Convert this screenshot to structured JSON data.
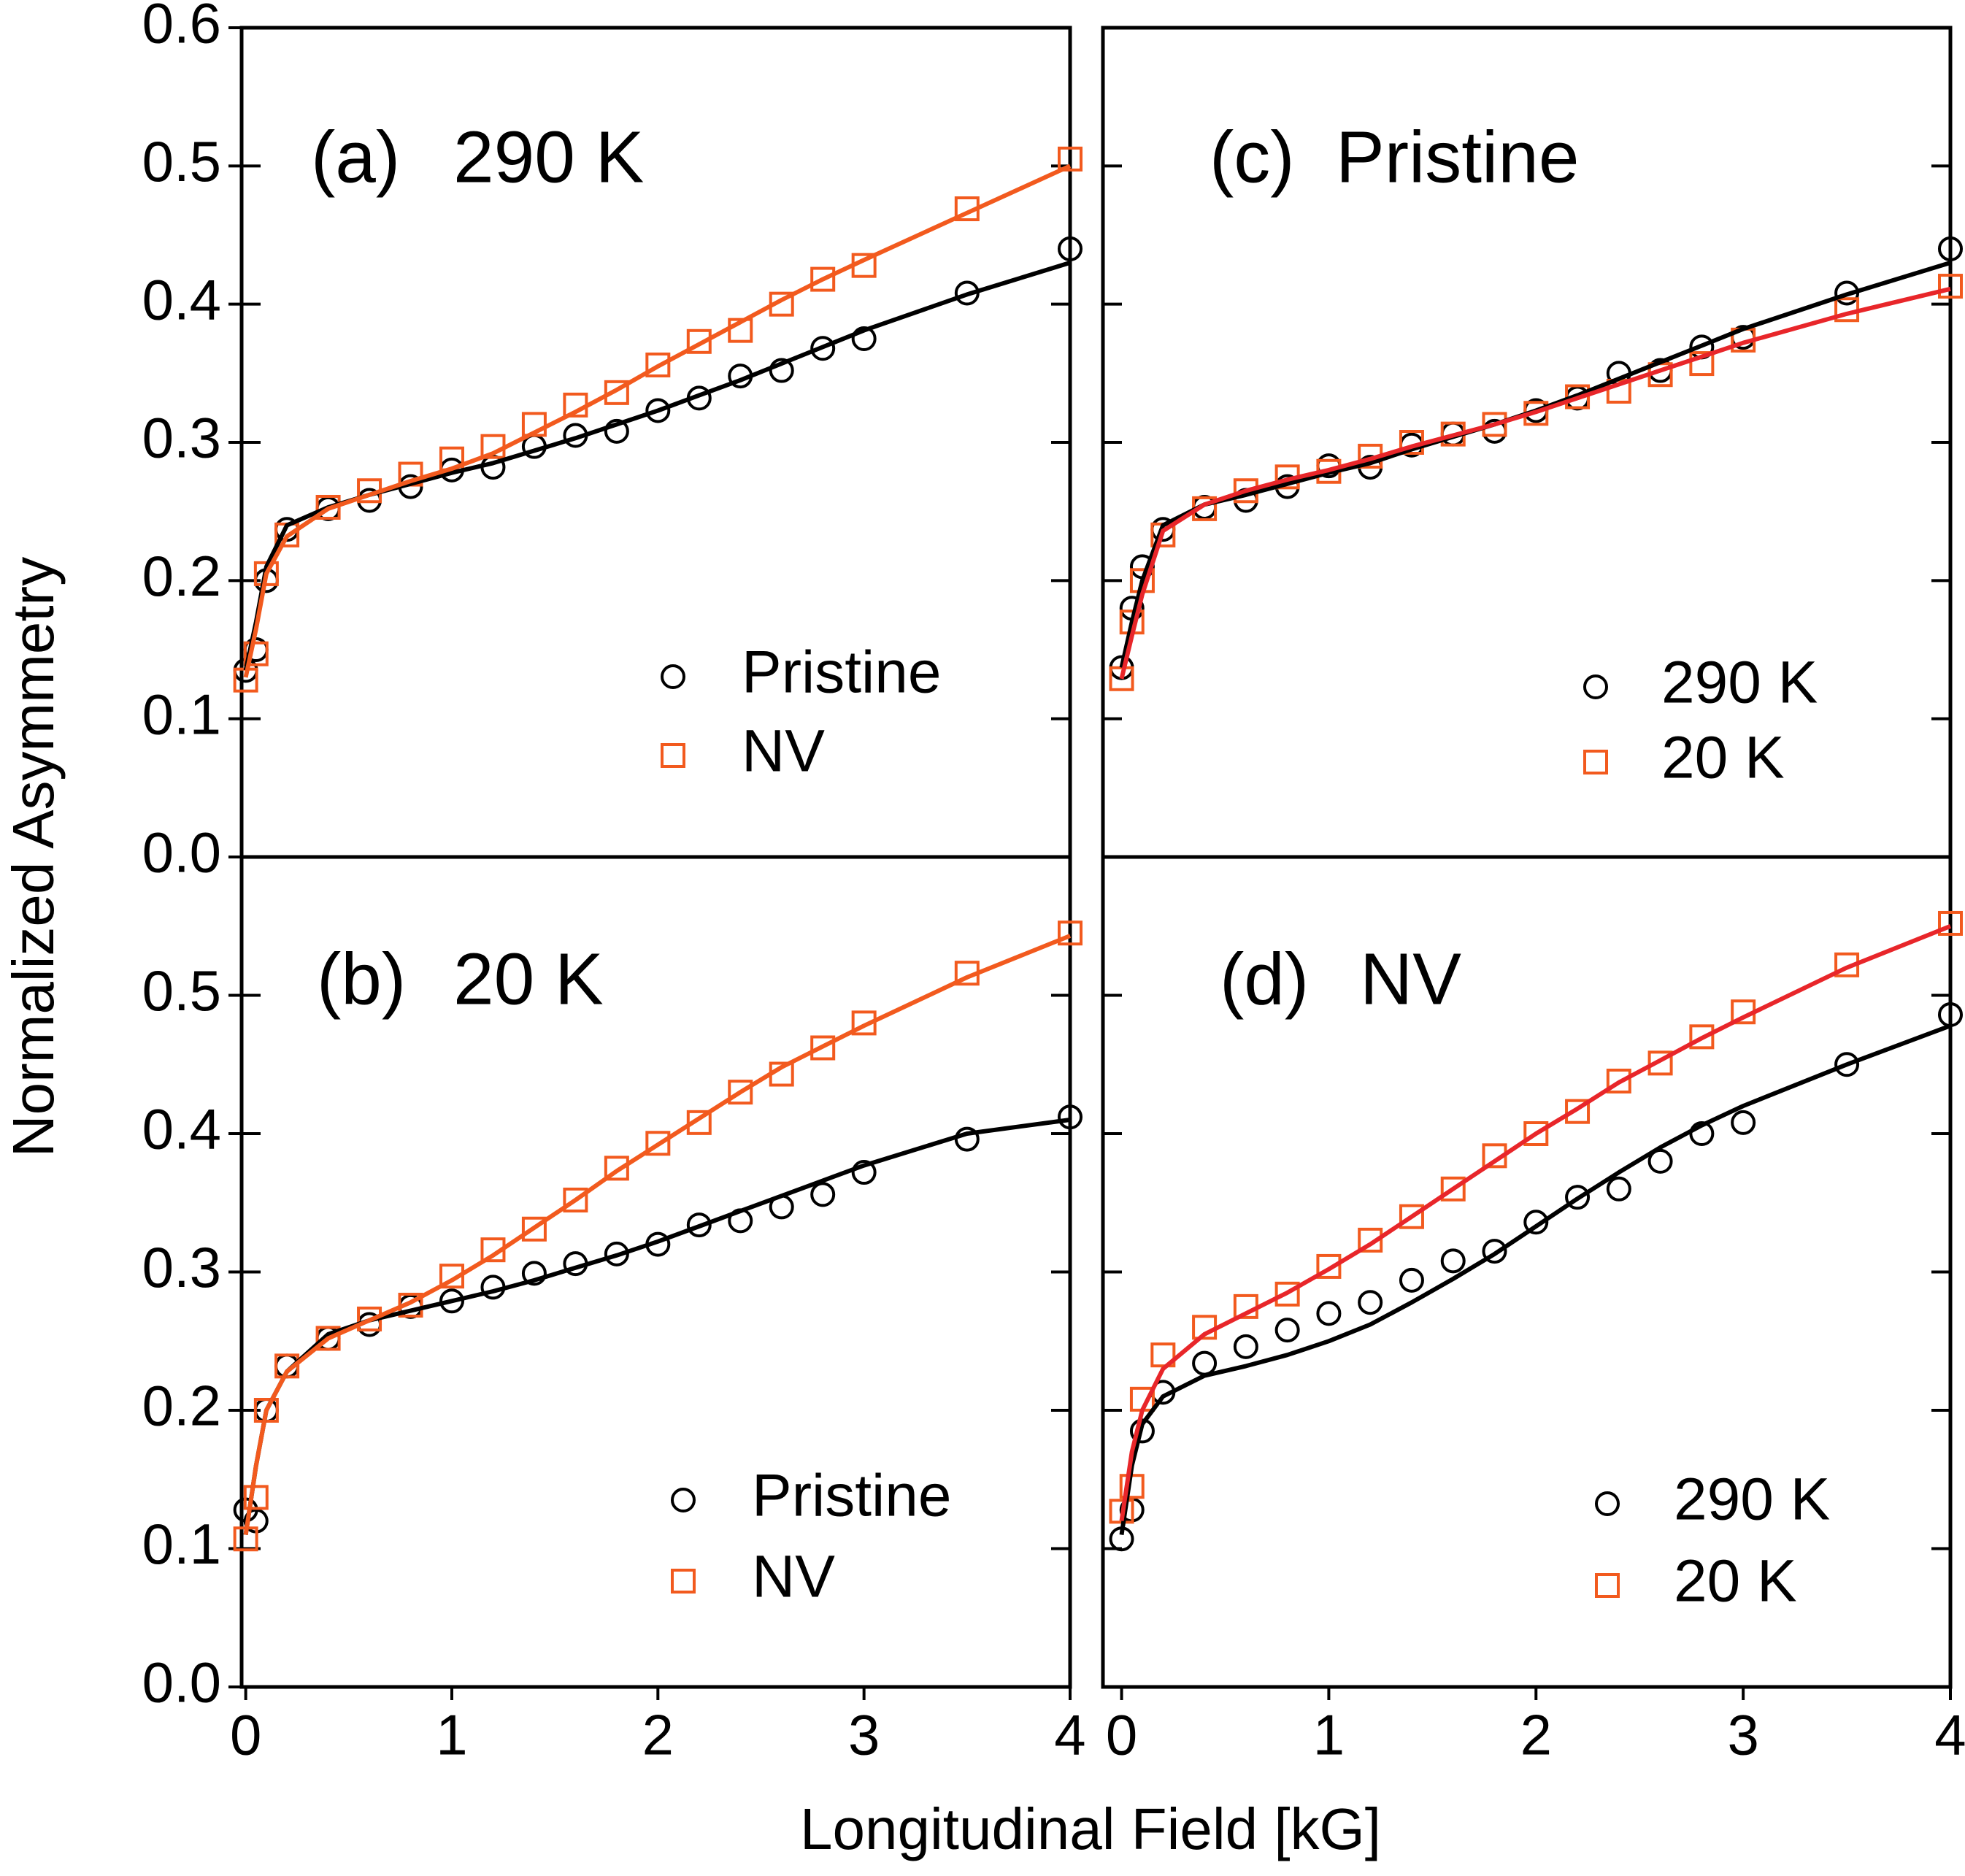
{
  "chart_data": [
    {
      "type": "scatter",
      "label": "(a)",
      "title": "290 K",
      "x": [
        0,
        0.05,
        0.1,
        0.2,
        0.4,
        0.6,
        0.8,
        1.0,
        1.2,
        1.4,
        1.6,
        1.8,
        2.0,
        2.2,
        2.4,
        2.6,
        2.8,
        3.0,
        3.5,
        4.0
      ],
      "series": [
        {
          "name": "Pristine",
          "marker": "circle",
          "color": "#000000",
          "fit_color": "#000000",
          "values": [
            0.135,
            0.15,
            0.2,
            0.237,
            0.252,
            0.258,
            0.268,
            0.28,
            0.282,
            0.297,
            0.305,
            0.308,
            0.323,
            0.332,
            0.348,
            0.352,
            0.368,
            0.375,
            0.408,
            0.44
          ],
          "fit": [
            0.135,
            0.17,
            0.21,
            0.24,
            0.253,
            0.262,
            0.27,
            0.278,
            0.285,
            0.294,
            0.303,
            0.313,
            0.323,
            0.334,
            0.345,
            0.357,
            0.369,
            0.381,
            0.407,
            0.43
          ]
        },
        {
          "name": "NV",
          "marker": "square",
          "color": "#f25a1e",
          "fit_color": "#f25a1e",
          "values": [
            0.128,
            0.147,
            0.205,
            0.233,
            0.253,
            0.265,
            0.277,
            0.288,
            0.297,
            0.313,
            0.327,
            0.336,
            0.356,
            0.373,
            0.381,
            0.4,
            0.418,
            0.428,
            0.469,
            0.505
          ],
          "fit": [
            0.13,
            0.165,
            0.205,
            0.232,
            0.252,
            0.262,
            0.272,
            0.281,
            0.292,
            0.307,
            0.322,
            0.338,
            0.355,
            0.371,
            0.387,
            0.403,
            0.418,
            0.432,
            0.466,
            0.5
          ]
        }
      ],
      "xlim": [
        -0.02,
        4.0
      ],
      "ylim": [
        0,
        0.6
      ],
      "yticks": [
        {
          "value": 0,
          "label": "0.0"
        },
        0.1,
        0.2,
        0.3,
        0.4,
        0.5,
        0.6
      ],
      "ytick_labels": true
    },
    {
      "type": "scatter",
      "label": "(b)",
      "title": "20 K",
      "x": [
        0,
        0.05,
        0.1,
        0.2,
        0.4,
        0.6,
        0.8,
        1.0,
        1.2,
        1.4,
        1.6,
        1.8,
        2.0,
        2.2,
        2.4,
        2.6,
        2.8,
        3.0,
        3.5,
        4.0
      ],
      "series": [
        {
          "name": "Pristine",
          "marker": "circle",
          "color": "#000000",
          "fit_color": "#000000",
          "values": [
            0.128,
            0.12,
            0.2,
            0.232,
            0.252,
            0.262,
            0.275,
            0.279,
            0.289,
            0.299,
            0.306,
            0.313,
            0.32,
            0.334,
            0.337,
            0.347,
            0.356,
            0.372,
            0.396,
            0.412
          ],
          "fit": [
            0.11,
            0.16,
            0.2,
            0.228,
            0.255,
            0.265,
            0.272,
            0.279,
            0.286,
            0.294,
            0.303,
            0.312,
            0.322,
            0.333,
            0.344,
            0.355,
            0.366,
            0.377,
            0.4,
            0.41
          ]
        },
        {
          "name": "NV",
          "marker": "square",
          "color": "#f25a1e",
          "fit_color": "#f25a1e",
          "values": [
            0.107,
            0.137,
            0.2,
            0.232,
            0.252,
            0.266,
            0.276,
            0.297,
            0.316,
            0.331,
            0.352,
            0.375,
            0.393,
            0.408,
            0.43,
            0.443,
            0.462,
            0.48,
            0.516,
            0.545
          ],
          "fit": [
            0.11,
            0.16,
            0.2,
            0.228,
            0.252,
            0.265,
            0.278,
            0.294,
            0.312,
            0.332,
            0.352,
            0.373,
            0.392,
            0.411,
            0.43,
            0.448,
            0.463,
            0.478,
            0.513,
            0.543
          ]
        }
      ],
      "xlim": [
        -0.02,
        4.0
      ],
      "ylim": [
        0,
        0.6
      ],
      "xticks": [
        0,
        1,
        2,
        3,
        4
      ],
      "yticks": [
        {
          "value": 0,
          "label": "0.0"
        },
        0.1,
        0.2,
        0.3,
        0.4,
        0.5
      ],
      "ytick_labels": true
    },
    {
      "type": "scatter",
      "label": "(c)",
      "title": "Pristine",
      "x": [
        0,
        0.05,
        0.1,
        0.2,
        0.4,
        0.6,
        0.8,
        1.0,
        1.2,
        1.4,
        1.6,
        1.8,
        2.0,
        2.2,
        2.4,
        2.6,
        2.8,
        3.0,
        3.5,
        4.0
      ],
      "series": [
        {
          "name": "290 K",
          "marker": "circle",
          "color": "#000000",
          "fit_color": "#000000",
          "values": [
            0.137,
            0.18,
            0.21,
            0.237,
            0.253,
            0.258,
            0.268,
            0.283,
            0.282,
            0.298,
            0.306,
            0.308,
            0.323,
            0.332,
            0.35,
            0.352,
            0.369,
            0.376,
            0.408,
            0.44
          ],
          "fit": [
            0.137,
            0.17,
            0.2,
            0.24,
            0.255,
            0.262,
            0.27,
            0.278,
            0.285,
            0.295,
            0.304,
            0.313,
            0.323,
            0.334,
            0.346,
            0.358,
            0.37,
            0.382,
            0.407,
            0.43
          ]
        },
        {
          "name": "20 K",
          "marker": "square",
          "color": "#f25a1e",
          "fit_color": "#e8262a",
          "values": [
            0.129,
            0.17,
            0.2,
            0.233,
            0.252,
            0.265,
            0.275,
            0.279,
            0.29,
            0.3,
            0.306,
            0.313,
            0.321,
            0.333,
            0.337,
            0.349,
            0.357,
            0.374,
            0.396,
            0.413
          ],
          "fit": [
            0.129,
            0.16,
            0.19,
            0.236,
            0.255,
            0.265,
            0.273,
            0.28,
            0.288,
            0.297,
            0.305,
            0.313,
            0.322,
            0.332,
            0.342,
            0.352,
            0.362,
            0.372,
            0.393,
            0.411
          ]
        }
      ],
      "xlim": [
        -0.09,
        4.0
      ],
      "ylim": [
        0,
        0.6
      ],
      "yticks": [
        0.1,
        0.2,
        0.3,
        0.4,
        0.5
      ],
      "ytick_labels": false
    },
    {
      "type": "scatter",
      "label": "(d)",
      "title": "NV",
      "x": [
        0,
        0.05,
        0.1,
        0.2,
        0.4,
        0.6,
        0.8,
        1.0,
        1.2,
        1.4,
        1.6,
        1.8,
        2.0,
        2.2,
        2.4,
        2.6,
        2.8,
        3.0,
        3.5,
        4.0
      ],
      "series": [
        {
          "name": "290 K",
          "marker": "circle",
          "color": "#000000",
          "fit_color": "#000000",
          "values": [
            0.107,
            0.128,
            0.185,
            0.213,
            0.234,
            0.246,
            0.258,
            0.27,
            0.278,
            0.294,
            0.308,
            0.315,
            0.336,
            0.354,
            0.36,
            0.38,
            0.4,
            0.408,
            0.45,
            0.486
          ],
          "fit": [
            0.11,
            0.16,
            0.19,
            0.21,
            0.225,
            0.232,
            0.24,
            0.25,
            0.262,
            0.278,
            0.295,
            0.313,
            0.333,
            0.353,
            0.372,
            0.39,
            0.406,
            0.42,
            0.45,
            0.478
          ]
        },
        {
          "name": "20 K",
          "marker": "square",
          "color": "#f25a1e",
          "fit_color": "#e8262a",
          "values": [
            0.127,
            0.145,
            0.208,
            0.24,
            0.26,
            0.275,
            0.284,
            0.304,
            0.323,
            0.34,
            0.36,
            0.384,
            0.4,
            0.416,
            0.438,
            0.451,
            0.47,
            0.488,
            0.522,
            0.552
          ],
          "fit": [
            0.12,
            0.17,
            0.2,
            0.23,
            0.255,
            0.27,
            0.285,
            0.302,
            0.32,
            0.34,
            0.36,
            0.38,
            0.4,
            0.418,
            0.437,
            0.453,
            0.469,
            0.484,
            0.52,
            0.55
          ]
        }
      ],
      "xlim": [
        -0.09,
        4.0
      ],
      "ylim": [
        0,
        0.6
      ],
      "xticks": [
        0,
        1,
        2,
        3,
        4
      ],
      "yticks": [
        0.1,
        0.2,
        0.3,
        0.4,
        0.5
      ],
      "ytick_labels": false
    }
  ],
  "ylabel": "Normalized Asymmetry",
  "xlabel": "Longitudinal Field [kG]"
}
